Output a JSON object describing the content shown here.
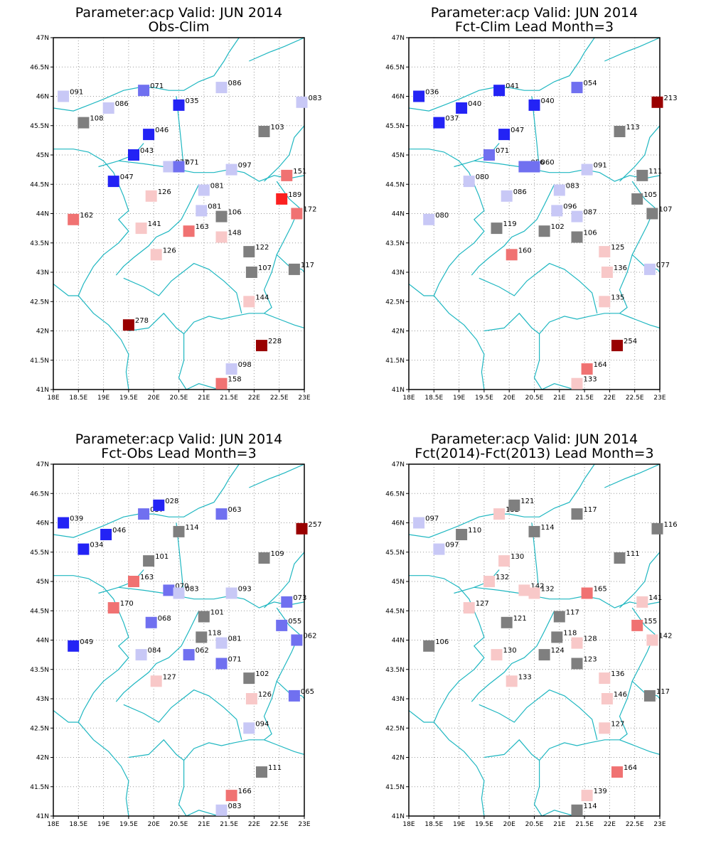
{
  "colors": {
    "dark_blue": "#2323f5",
    "mid_blue": "#7070f0",
    "light_blue": "#c8c8f6",
    "gray": "#7f7f7f",
    "light_red": "#f8c8c8",
    "mid_red": "#f07272",
    "red": "#fb2020",
    "dark_red": "#990000",
    "borders": "#1fb7c1"
  },
  "axes": {
    "lon_ticks": [
      "18E",
      "18.5E",
      "19E",
      "19.5E",
      "20E",
      "20.5E",
      "21E",
      "21.5E",
      "22E",
      "22.5E",
      "23E"
    ],
    "lat_ticks": [
      "47N",
      "46.5N",
      "46N",
      "45.5N",
      "45N",
      "44.5N",
      "44N",
      "43.5N",
      "43N",
      "42.5N",
      "42N",
      "41.5N",
      "41N"
    ],
    "lon_range": [
      18,
      23
    ],
    "lat_range": [
      41,
      47
    ]
  },
  "chart_data": [
    {
      "type": "scatter",
      "title": "Parameter:acp Valid: JUN 2014",
      "subtitle": "Obs-Clim",
      "points": [
        {
          "lon": 18.2,
          "lat": 46.0,
          "value": "091",
          "color": "light_blue"
        },
        {
          "lon": 19.1,
          "lat": 45.8,
          "value": "086",
          "color": "light_blue"
        },
        {
          "lon": 19.8,
          "lat": 46.1,
          "value": "071",
          "color": "mid_blue"
        },
        {
          "lon": 20.5,
          "lat": 45.85,
          "value": "035",
          "color": "dark_blue"
        },
        {
          "lon": 21.35,
          "lat": 46.15,
          "value": "086",
          "color": "light_blue"
        },
        {
          "lon": 22.95,
          "lat": 45.9,
          "value": "083",
          "color": "light_blue"
        },
        {
          "lon": 18.6,
          "lat": 45.55,
          "value": "108",
          "color": "gray"
        },
        {
          "lon": 19.9,
          "lat": 45.35,
          "value": "046",
          "color": "dark_blue"
        },
        {
          "lon": 22.2,
          "lat": 45.4,
          "value": "103",
          "color": "gray"
        },
        {
          "lon": 19.6,
          "lat": 45.0,
          "value": "043",
          "color": "dark_blue"
        },
        {
          "lon": 20.3,
          "lat": 44.8,
          "value": "077",
          "color": "light_blue"
        },
        {
          "lon": 20.5,
          "lat": 44.8,
          "value": "071",
          "color": "mid_blue"
        },
        {
          "lon": 21.55,
          "lat": 44.75,
          "value": "097",
          "color": "light_blue"
        },
        {
          "lon": 22.65,
          "lat": 44.65,
          "value": "151",
          "color": "mid_red"
        },
        {
          "lon": 19.2,
          "lat": 44.55,
          "value": "047",
          "color": "dark_blue"
        },
        {
          "lon": 19.95,
          "lat": 44.3,
          "value": "126",
          "color": "light_red"
        },
        {
          "lon": 21.0,
          "lat": 44.4,
          "value": "081",
          "color": "light_blue"
        },
        {
          "lon": 22.55,
          "lat": 44.25,
          "value": "189",
          "color": "red"
        },
        {
          "lon": 20.95,
          "lat": 44.05,
          "value": "081",
          "color": "light_blue"
        },
        {
          "lon": 21.35,
          "lat": 43.95,
          "value": "106",
          "color": "gray"
        },
        {
          "lon": 22.85,
          "lat": 44.0,
          "value": "172",
          "color": "mid_red"
        },
        {
          "lon": 18.4,
          "lat": 43.9,
          "value": "162",
          "color": "mid_red"
        },
        {
          "lon": 19.75,
          "lat": 43.75,
          "value": "141",
          "color": "light_red"
        },
        {
          "lon": 20.7,
          "lat": 43.7,
          "value": "163",
          "color": "mid_red"
        },
        {
          "lon": 21.35,
          "lat": 43.6,
          "value": "148",
          "color": "light_red"
        },
        {
          "lon": 21.9,
          "lat": 43.35,
          "value": "122",
          "color": "gray"
        },
        {
          "lon": 20.05,
          "lat": 43.3,
          "value": "126",
          "color": "light_red"
        },
        {
          "lon": 21.95,
          "lat": 43.0,
          "value": "107",
          "color": "gray"
        },
        {
          "lon": 22.8,
          "lat": 43.05,
          "value": "117",
          "color": "gray"
        },
        {
          "lon": 21.9,
          "lat": 42.5,
          "value": "144",
          "color": "light_red"
        },
        {
          "lon": 19.5,
          "lat": 42.1,
          "value": "278",
          "color": "dark_red"
        },
        {
          "lon": 22.15,
          "lat": 41.75,
          "value": "228",
          "color": "dark_red"
        },
        {
          "lon": 21.55,
          "lat": 41.35,
          "value": "098",
          "color": "light_blue"
        },
        {
          "lon": 21.35,
          "lat": 41.1,
          "value": "158",
          "color": "mid_red"
        }
      ]
    },
    {
      "type": "scatter",
      "title": "Parameter:acp Valid: JUN 2014",
      "subtitle": "Fct-Clim Lead Month=3",
      "points": [
        {
          "lon": 18.2,
          "lat": 46.0,
          "value": "036",
          "color": "dark_blue"
        },
        {
          "lon": 19.05,
          "lat": 45.8,
          "value": "040",
          "color": "dark_blue"
        },
        {
          "lon": 19.8,
          "lat": 46.1,
          "value": "041",
          "color": "dark_blue"
        },
        {
          "lon": 20.5,
          "lat": 45.85,
          "value": "040",
          "color": "dark_blue"
        },
        {
          "lon": 21.35,
          "lat": 46.15,
          "value": "054",
          "color": "mid_blue"
        },
        {
          "lon": 22.95,
          "lat": 45.9,
          "value": "213",
          "color": "dark_red"
        },
        {
          "lon": 18.6,
          "lat": 45.55,
          "value": "037",
          "color": "dark_blue"
        },
        {
          "lon": 19.9,
          "lat": 45.35,
          "value": "047",
          "color": "dark_blue"
        },
        {
          "lon": 22.2,
          "lat": 45.4,
          "value": "113",
          "color": "gray"
        },
        {
          "lon": 19.6,
          "lat": 45.0,
          "value": "071",
          "color": "mid_blue"
        },
        {
          "lon": 20.3,
          "lat": 44.8,
          "value": "056",
          "color": "mid_blue"
        },
        {
          "lon": 20.5,
          "lat": 44.8,
          "value": "060",
          "color": "mid_blue"
        },
        {
          "lon": 21.55,
          "lat": 44.75,
          "value": "091",
          "color": "light_blue"
        },
        {
          "lon": 22.65,
          "lat": 44.65,
          "value": "111",
          "color": "gray"
        },
        {
          "lon": 19.2,
          "lat": 44.55,
          "value": "080",
          "color": "light_blue"
        },
        {
          "lon": 19.95,
          "lat": 44.3,
          "value": "086",
          "color": "light_blue"
        },
        {
          "lon": 21.0,
          "lat": 44.4,
          "value": "083",
          "color": "light_blue"
        },
        {
          "lon": 22.55,
          "lat": 44.25,
          "value": "105",
          "color": "gray"
        },
        {
          "lon": 20.95,
          "lat": 44.05,
          "value": "096",
          "color": "light_blue"
        },
        {
          "lon": 21.35,
          "lat": 43.95,
          "value": "087",
          "color": "light_blue"
        },
        {
          "lon": 22.85,
          "lat": 44.0,
          "value": "107",
          "color": "gray"
        },
        {
          "lon": 18.4,
          "lat": 43.9,
          "value": "080",
          "color": "light_blue"
        },
        {
          "lon": 19.75,
          "lat": 43.75,
          "value": "119",
          "color": "gray"
        },
        {
          "lon": 20.7,
          "lat": 43.7,
          "value": "102",
          "color": "gray"
        },
        {
          "lon": 21.35,
          "lat": 43.6,
          "value": "106",
          "color": "gray"
        },
        {
          "lon": 21.9,
          "lat": 43.35,
          "value": "125",
          "color": "light_red"
        },
        {
          "lon": 20.05,
          "lat": 43.3,
          "value": "160",
          "color": "mid_red"
        },
        {
          "lon": 21.95,
          "lat": 43.0,
          "value": "136",
          "color": "light_red"
        },
        {
          "lon": 22.8,
          "lat": 43.05,
          "value": "077",
          "color": "light_blue"
        },
        {
          "lon": 21.9,
          "lat": 42.5,
          "value": "135",
          "color": "light_red"
        },
        {
          "lon": 22.15,
          "lat": 41.75,
          "value": "254",
          "color": "dark_red"
        },
        {
          "lon": 21.55,
          "lat": 41.35,
          "value": "164",
          "color": "mid_red"
        },
        {
          "lon": 21.35,
          "lat": 41.1,
          "value": "133",
          "color": "light_red"
        }
      ]
    },
    {
      "type": "scatter",
      "title": "Parameter:acp Valid: JUN 2014",
      "subtitle": "Fct-Obs Lead Month=3",
      "points": [
        {
          "lon": 18.2,
          "lat": 46.0,
          "value": "039",
          "color": "dark_blue"
        },
        {
          "lon": 19.05,
          "lat": 45.8,
          "value": "046",
          "color": "dark_blue"
        },
        {
          "lon": 19.8,
          "lat": 46.15,
          "value": "057",
          "color": "mid_blue"
        },
        {
          "lon": 20.1,
          "lat": 46.3,
          "value": "028",
          "color": "dark_blue"
        },
        {
          "lon": 20.5,
          "lat": 45.85,
          "value": "114",
          "color": "gray"
        },
        {
          "lon": 21.35,
          "lat": 46.15,
          "value": "063",
          "color": "mid_blue"
        },
        {
          "lon": 22.95,
          "lat": 45.9,
          "value": "257",
          "color": "dark_red"
        },
        {
          "lon": 18.6,
          "lat": 45.55,
          "value": "034",
          "color": "dark_blue"
        },
        {
          "lon": 19.9,
          "lat": 45.35,
          "value": "101",
          "color": "gray"
        },
        {
          "lon": 22.2,
          "lat": 45.4,
          "value": "109",
          "color": "gray"
        },
        {
          "lon": 19.6,
          "lat": 45.0,
          "value": "163",
          "color": "mid_red"
        },
        {
          "lon": 20.3,
          "lat": 44.85,
          "value": "070",
          "color": "mid_blue"
        },
        {
          "lon": 20.5,
          "lat": 44.8,
          "value": "083",
          "color": "light_blue"
        },
        {
          "lon": 21.55,
          "lat": 44.8,
          "value": "093",
          "color": "light_blue"
        },
        {
          "lon": 22.65,
          "lat": 44.65,
          "value": "073",
          "color": "mid_blue"
        },
        {
          "lon": 19.2,
          "lat": 44.55,
          "value": "170",
          "color": "mid_red"
        },
        {
          "lon": 21.0,
          "lat": 44.4,
          "value": "101",
          "color": "gray"
        },
        {
          "lon": 19.95,
          "lat": 44.3,
          "value": "068",
          "color": "mid_blue"
        },
        {
          "lon": 22.55,
          "lat": 44.25,
          "value": "055",
          "color": "mid_blue"
        },
        {
          "lon": 20.95,
          "lat": 44.05,
          "value": "118",
          "color": "gray"
        },
        {
          "lon": 21.35,
          "lat": 43.95,
          "value": "081",
          "color": "light_blue"
        },
        {
          "lon": 22.85,
          "lat": 44.0,
          "value": "062",
          "color": "mid_blue"
        },
        {
          "lon": 18.4,
          "lat": 43.9,
          "value": "049",
          "color": "dark_blue"
        },
        {
          "lon": 19.75,
          "lat": 43.75,
          "value": "084",
          "color": "light_blue"
        },
        {
          "lon": 20.7,
          "lat": 43.75,
          "value": "062",
          "color": "mid_blue"
        },
        {
          "lon": 21.35,
          "lat": 43.6,
          "value": "071",
          "color": "mid_blue"
        },
        {
          "lon": 21.9,
          "lat": 43.35,
          "value": "102",
          "color": "gray"
        },
        {
          "lon": 20.05,
          "lat": 43.3,
          "value": "127",
          "color": "light_red"
        },
        {
          "lon": 21.95,
          "lat": 43.0,
          "value": "126",
          "color": "light_red"
        },
        {
          "lon": 22.8,
          "lat": 43.05,
          "value": "065",
          "color": "mid_blue"
        },
        {
          "lon": 21.9,
          "lat": 42.5,
          "value": "094",
          "color": "light_blue"
        },
        {
          "lon": 22.15,
          "lat": 41.75,
          "value": "111",
          "color": "gray"
        },
        {
          "lon": 21.55,
          "lat": 41.35,
          "value": "166",
          "color": "mid_red"
        },
        {
          "lon": 21.35,
          "lat": 41.1,
          "value": "083",
          "color": "light_blue"
        }
      ]
    },
    {
      "type": "scatter",
      "title": "Parameter:acp Valid: JUN 2014",
      "subtitle": "Fct(2014)-Fct(2013) Lead Month=3",
      "points": [
        {
          "lon": 18.2,
          "lat": 46.0,
          "value": "097",
          "color": "light_blue"
        },
        {
          "lon": 19.05,
          "lat": 45.8,
          "value": "110",
          "color": "gray"
        },
        {
          "lon": 19.8,
          "lat": 46.15,
          "value": "132",
          "color": "light_red"
        },
        {
          "lon": 20.1,
          "lat": 46.3,
          "value": "121",
          "color": "gray"
        },
        {
          "lon": 20.5,
          "lat": 45.85,
          "value": "114",
          "color": "gray"
        },
        {
          "lon": 21.35,
          "lat": 46.15,
          "value": "117",
          "color": "gray"
        },
        {
          "lon": 22.95,
          "lat": 45.9,
          "value": "116",
          "color": "gray"
        },
        {
          "lon": 18.6,
          "lat": 45.55,
          "value": "097",
          "color": "light_blue"
        },
        {
          "lon": 19.9,
          "lat": 45.35,
          "value": "130",
          "color": "light_red"
        },
        {
          "lon": 22.2,
          "lat": 45.4,
          "value": "111",
          "color": "gray"
        },
        {
          "lon": 19.6,
          "lat": 45.0,
          "value": "132",
          "color": "light_red"
        },
        {
          "lon": 20.3,
          "lat": 44.85,
          "value": "142",
          "color": "light_red"
        },
        {
          "lon": 20.5,
          "lat": 44.8,
          "value": "132",
          "color": "light_red"
        },
        {
          "lon": 21.55,
          "lat": 44.8,
          "value": "165",
          "color": "mid_red"
        },
        {
          "lon": 22.65,
          "lat": 44.65,
          "value": "141",
          "color": "light_red"
        },
        {
          "lon": 19.2,
          "lat": 44.55,
          "value": "127",
          "color": "light_red"
        },
        {
          "lon": 21.0,
          "lat": 44.4,
          "value": "117",
          "color": "gray"
        },
        {
          "lon": 19.95,
          "lat": 44.3,
          "value": "121",
          "color": "gray"
        },
        {
          "lon": 22.55,
          "lat": 44.25,
          "value": "155",
          "color": "mid_red"
        },
        {
          "lon": 20.95,
          "lat": 44.05,
          "value": "118",
          "color": "gray"
        },
        {
          "lon": 21.35,
          "lat": 43.95,
          "value": "128",
          "color": "light_red"
        },
        {
          "lon": 22.85,
          "lat": 44.0,
          "value": "142",
          "color": "light_red"
        },
        {
          "lon": 18.4,
          "lat": 43.9,
          "value": "106",
          "color": "gray"
        },
        {
          "lon": 19.75,
          "lat": 43.75,
          "value": "130",
          "color": "light_red"
        },
        {
          "lon": 20.7,
          "lat": 43.75,
          "value": "124",
          "color": "gray"
        },
        {
          "lon": 21.35,
          "lat": 43.6,
          "value": "123",
          "color": "gray"
        },
        {
          "lon": 21.9,
          "lat": 43.35,
          "value": "136",
          "color": "light_red"
        },
        {
          "lon": 20.05,
          "lat": 43.3,
          "value": "133",
          "color": "light_red"
        },
        {
          "lon": 21.95,
          "lat": 43.0,
          "value": "146",
          "color": "light_red"
        },
        {
          "lon": 22.8,
          "lat": 43.05,
          "value": "117",
          "color": "gray"
        },
        {
          "lon": 21.9,
          "lat": 42.5,
          "value": "127",
          "color": "light_red"
        },
        {
          "lon": 22.15,
          "lat": 41.75,
          "value": "164",
          "color": "mid_red"
        },
        {
          "lon": 21.55,
          "lat": 41.35,
          "value": "139",
          "color": "light_red"
        },
        {
          "lon": 21.35,
          "lat": 41.1,
          "value": "114",
          "color": "gray"
        }
      ]
    }
  ]
}
